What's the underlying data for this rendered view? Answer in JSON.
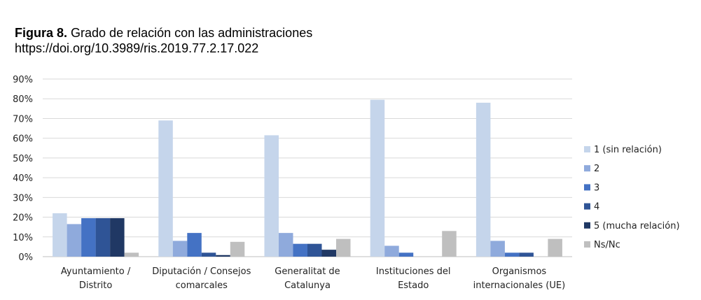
{
  "figure_label": "Figura 8.",
  "title": "Grado de relación con las administraciones",
  "doi": "https://doi.org/10.3989/ris.2019.77.2.17.022",
  "chart_data": {
    "type": "bar",
    "categories": [
      [
        "Ayuntamiento /",
        "Distrito"
      ],
      [
        "Diputación / Consejos",
        "comarcales"
      ],
      [
        "Generalitat de",
        "Catalunya"
      ],
      [
        "Instituciones del",
        "Estado"
      ],
      [
        "Organismos",
        "internacionales (UE)"
      ]
    ],
    "ylim": [
      0,
      90
    ],
    "yticks": [
      "0%",
      "10%",
      "20%",
      "30%",
      "40%",
      "50%",
      "60%",
      "70%",
      "80%",
      "90%"
    ],
    "grid": true,
    "legend_position": "right",
    "series": [
      {
        "name": "1 (sin relación)",
        "color": "#c5d5eb",
        "values": [
          22,
          69,
          61.5,
          79.5,
          78
        ]
      },
      {
        "name": "2",
        "color": "#8faadc",
        "values": [
          16.5,
          8,
          12,
          5.5,
          8
        ]
      },
      {
        "name": "3",
        "color": "#4472c4",
        "values": [
          19.5,
          12,
          6.5,
          2,
          2
        ]
      },
      {
        "name": "4",
        "color": "#2f5496",
        "values": [
          19.5,
          2,
          6.5,
          0,
          2
        ]
      },
      {
        "name": "5 (mucha relación)",
        "color": "#203864",
        "values": [
          19.5,
          0.8,
          3.5,
          0,
          0
        ]
      },
      {
        "name": "Ns/Nc",
        "color": "#bfbfbf",
        "values": [
          2,
          7.5,
          9,
          13,
          9
        ]
      }
    ]
  }
}
